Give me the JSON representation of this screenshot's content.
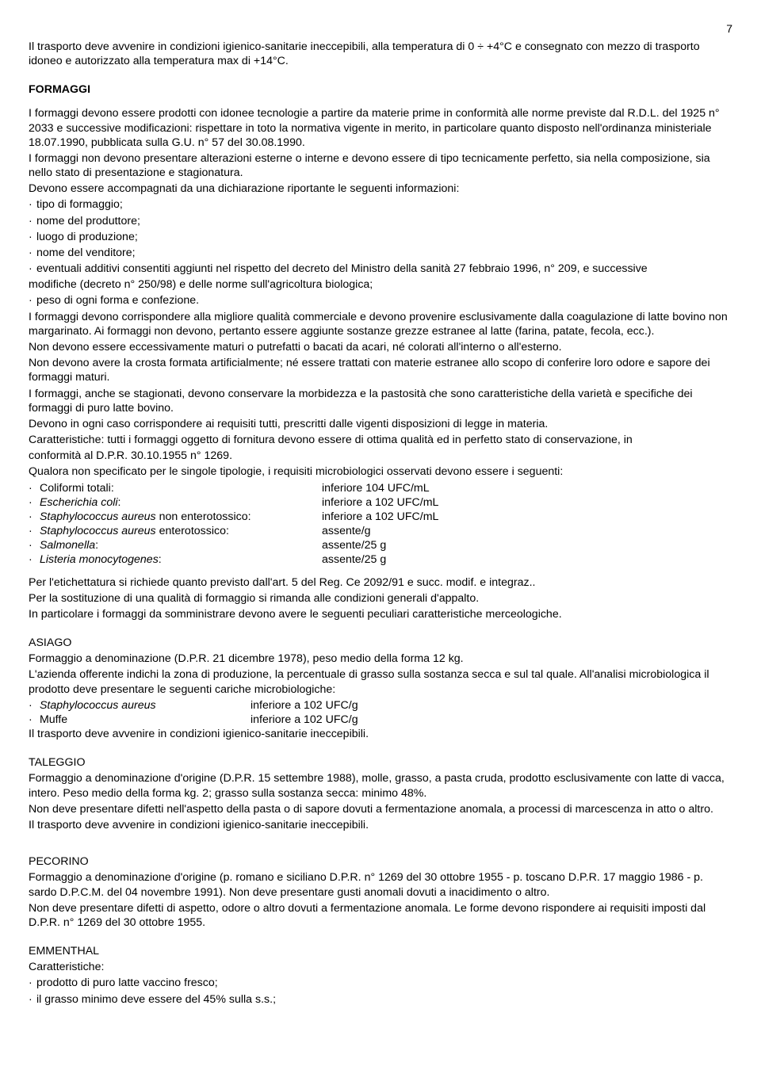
{
  "page_number": "7",
  "intro": "Il trasporto deve avvenire in condizioni igienico-sanitarie ineccepibili, alla temperatura di 0 ÷ +4°C e consegnato con mezzo di trasporto idoneo e autorizzato alla temperatura max di +14°C.",
  "section_title": "FORMAGGI",
  "para1": "I formaggi devono essere prodotti con idonee tecnologie a partire da materie prime in conformità alle norme previste dal R.D.L. del 1925 n° 2033 e successive modificazioni: rispettare in toto la normativa vigente in merito, in particolare quanto disposto nell'ordinanza ministeriale 18.07.1990, pubblicata sulla G.U. n° 57 del 30.08.1990.",
  "para2": "I formaggi non devono presentare alterazioni esterne o interne e devono essere di tipo tecnicamente perfetto, sia nella composizione, sia nello stato di presentazione e stagionatura.",
  "para3": "Devono essere accompagnati da una dichiarazione riportante le seguenti informazioni:",
  "bullets1": [
    "tipo di formaggio;",
    "nome del produttore;",
    "luogo di produzione;",
    "nome del venditore;",
    "eventuali additivi consentiti aggiunti nel rispetto del decreto del Ministro della sanità 27 febbraio 1996, n° 209, e successive"
  ],
  "bullets1_cont": "modifiche (decreto n° 250/98) e delle norme sull'agricoltura biologica;",
  "bullets1b": "peso di ogni forma e confezione.",
  "para4": "I formaggi devono corrispondere alla migliore qualità commerciale e devono provenire esclusivamente dalla coagulazione di latte bovino non margarinato. Ai formaggi non devono, pertanto essere aggiunte sostanze grezze estranee al latte (farina, patate, fecola, ecc.).",
  "para5": "Non devono essere eccessivamente maturi o putrefatti o bacati da acari, né colorati all'interno o all'esterno.",
  "para6": "Non devono avere la crosta formata artificialmente; né essere trattati con materie estranee allo scopo di conferire loro odore e sapore dei formaggi maturi.",
  "para7": "I formaggi, anche se stagionati, devono conservare la morbidezza e la pastosità che sono caratteristiche della varietà e specifiche dei formaggi di puro latte bovino.",
  "para8": "Devono in ogni caso corrispondere ai requisiti tutti, prescritti dalle vigenti disposizioni di legge in materia.",
  "para9a": "Caratteristiche: tutti i formaggi oggetto di fornitura devono essere di ottima qualità ed in perfetto stato di conservazione, in",
  "para9b": "conformità al D.P.R. 30.10.1955 n° 1269.",
  "para10": "Qualora non specificato per le singole tipologie, i requisiti microbiologici osservati devono essere i seguenti:",
  "micro": [
    {
      "label_pre": "",
      "label_em": "",
      "label_post": "Coliformi totali:",
      "value": "inferiore 104 UFC/mL"
    },
    {
      "label_pre": "",
      "label_em": "Escherichia coli",
      "label_post": ":",
      "value": "inferiore a 102 UFC/mL"
    },
    {
      "label_pre": "",
      "label_em": "Staphylococcus aureus",
      "label_post": " non enterotossico:",
      "value": "inferiore a 102 UFC/mL"
    },
    {
      "label_pre": "",
      "label_em": "Staphylococcus aureus",
      "label_post": " enterotossico:",
      "value": "assente/g"
    },
    {
      "label_pre": "",
      "label_em": "Salmonella",
      "label_post": ":",
      "value": "assente/25 g"
    },
    {
      "label_pre": "",
      "label_em": "Listeria monocytogenes",
      "label_post": ":",
      "value": "assente/25 g"
    }
  ],
  "para11": "Per l'etichettatura si richiede quanto previsto dall'art. 5 del Reg. Ce 2092/91 e succ. modif. e integraz..",
  "para12": "Per la sostituzione di una qualità di formaggio si rimanda alle condizioni generali d'appalto.",
  "para13": "In particolare i formaggi da somministrare devono avere le seguenti peculiari caratteristiche merceologiche.",
  "asiago_title": "ASIAGO",
  "asiago_p1": "Formaggio a denominazione (D.P.R. 21 dicembre 1978), peso medio della forma 12 kg.",
  "asiago_p2": "L'azienda offerente indichi la zona di produzione, la percentuale di grasso sulla sostanza secca e sul tal quale. All'analisi microbiologica il prodotto deve presentare le seguenti cariche microbiologiche:",
  "asiago_micro": [
    {
      "label_em": "Staphylococcus aureus",
      "value": "inferiore a 102 UFC/g"
    },
    {
      "label_em": "",
      "label_post": "Muffe",
      "value": "inferiore a 102 UFC/g"
    }
  ],
  "asiago_p3": "Il trasporto deve avvenire in condizioni igienico-sanitarie ineccepibili.",
  "taleggio_title": "TALEGGIO",
  "taleggio_p1": "Formaggio a denominazione d'origine (D.P.R. 15 settembre 1988), molle, grasso, a pasta cruda, prodotto esclusivamente con latte di vacca, intero. Peso medio della forma kg. 2; grasso sulla sostanza secca: minimo 48%.",
  "taleggio_p2": "Non deve presentare difetti nell'aspetto della pasta o di sapore dovuti a fermentazione anomala, a processi di marcescenza in atto o altro.",
  "taleggio_p3": "Il trasporto deve avvenire in condizioni igienico-sanitarie ineccepibili.",
  "pecorino_title": "PECORINO",
  "pecorino_p1": "Formaggio a denominazione d'origine (p. romano e siciliano D.P.R. n° 1269 del 30 ottobre 1955 - p. toscano D.P.R. 17 maggio 1986 - p. sardo D.P.C.M. del 04 novembre 1991). Non deve presentare gusti anomali dovuti a inacidimento o altro.",
  "pecorino_p2": "Non deve presentare difetti di aspetto, odore o altro dovuti a fermentazione anomala. Le forme devono rispondere ai requisiti imposti dal D.P.R. n° 1269 del 30 ottobre 1955.",
  "emmenthal_title": "EMMENTHAL",
  "emmenthal_p1": "Caratteristiche:",
  "emmenthal_bullets": [
    "prodotto di puro latte vaccino fresco;",
    "il grasso minimo deve essere del 45% sulla s.s.;"
  ]
}
